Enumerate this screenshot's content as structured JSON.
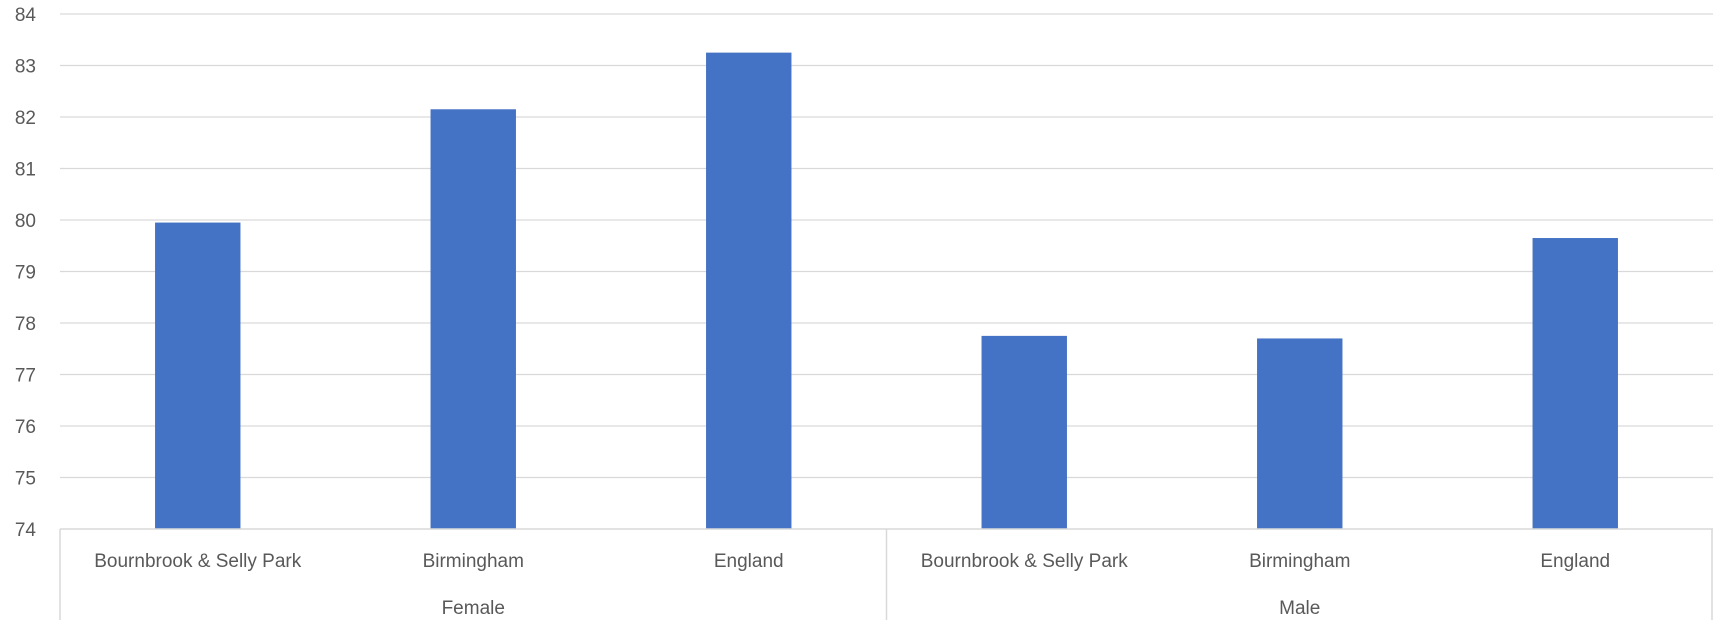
{
  "chart_data": {
    "type": "bar",
    "groups": [
      {
        "label": "Female",
        "categories": [
          "Bournbrook & Selly Park",
          "Birmingham",
          "England"
        ],
        "values": [
          79.95,
          82.15,
          83.25
        ]
      },
      {
        "label": "Male",
        "categories": [
          "Bournbrook & Selly Park",
          "Birmingham",
          "England"
        ],
        "values": [
          77.75,
          77.7,
          79.65
        ]
      }
    ],
    "ylim": [
      74,
      84
    ],
    "yticks": [
      74,
      75,
      76,
      77,
      78,
      79,
      80,
      81,
      82,
      83,
      84
    ],
    "grid": true,
    "legend": "none",
    "bar_color": "#4472C4",
    "grid_color": "#D9D9D9",
    "axis_color": "#D9D9D9",
    "text_color": "#595959"
  }
}
